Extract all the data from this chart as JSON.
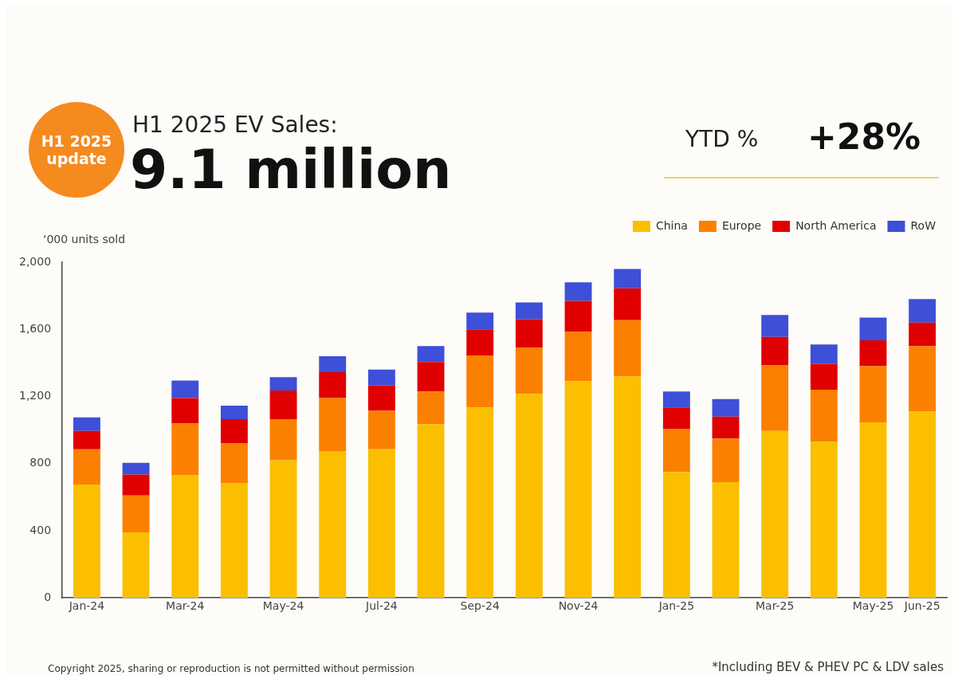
{
  "chart_data": {
    "type": "bar",
    "stacked": true,
    "title": "H1 2025 EV Sales:",
    "subtitle": "9.1 million",
    "ylabel": "‘000 units sold",
    "annotations": [
      "H1 2025 update",
      "YTD %",
      "+28%",
      "Copyright 2025, sharing or reproduction is not permitted without permission",
      "*Including BEV & PHEV PC & LDV sales"
    ],
    "categories": [
      "Jan-24",
      null,
      "Mar-24",
      null,
      "May-24",
      null,
      "Jul-24",
      null,
      "Sep-24",
      null,
      "Nov-24",
      null,
      "Jan-25",
      null,
      "Mar-25",
      null,
      "May-25",
      "Jun-25"
    ],
    "series": [
      {
        "name": "China",
        "color": "#fbbf00",
        "values": [
          675,
          390,
          730,
          685,
          820,
          875,
          885,
          1035,
          1135,
          1215,
          1290,
          1320,
          750,
          690,
          995,
          930,
          1045,
          1110
        ]
      },
      {
        "name": "Europe",
        "color": "#fb8000",
        "values": [
          210,
          220,
          310,
          235,
          245,
          315,
          230,
          195,
          310,
          275,
          295,
          335,
          255,
          260,
          390,
          310,
          335,
          390
        ]
      },
      {
        "name": "North America",
        "color": "#e00000",
        "values": [
          110,
          125,
          150,
          145,
          170,
          155,
          150,
          175,
          155,
          170,
          185,
          190,
          130,
          130,
          170,
          155,
          155,
          140
        ]
      },
      {
        "name": "RoW",
        "color": "#3e4fd8",
        "values": [
          80,
          70,
          105,
          80,
          80,
          95,
          95,
          95,
          100,
          100,
          110,
          115,
          95,
          105,
          130,
          115,
          135,
          140
        ]
      }
    ],
    "ylim": [
      0,
      2000
    ],
    "yticks": [
      0,
      400,
      800,
      {
        "value": 1200,
        "label": "1,200"
      },
      {
        "value": 1600,
        "label": "1,600"
      },
      {
        "value": 2000,
        "label": "2,000"
      }
    ],
    "grid": false,
    "legend": "top right"
  }
}
